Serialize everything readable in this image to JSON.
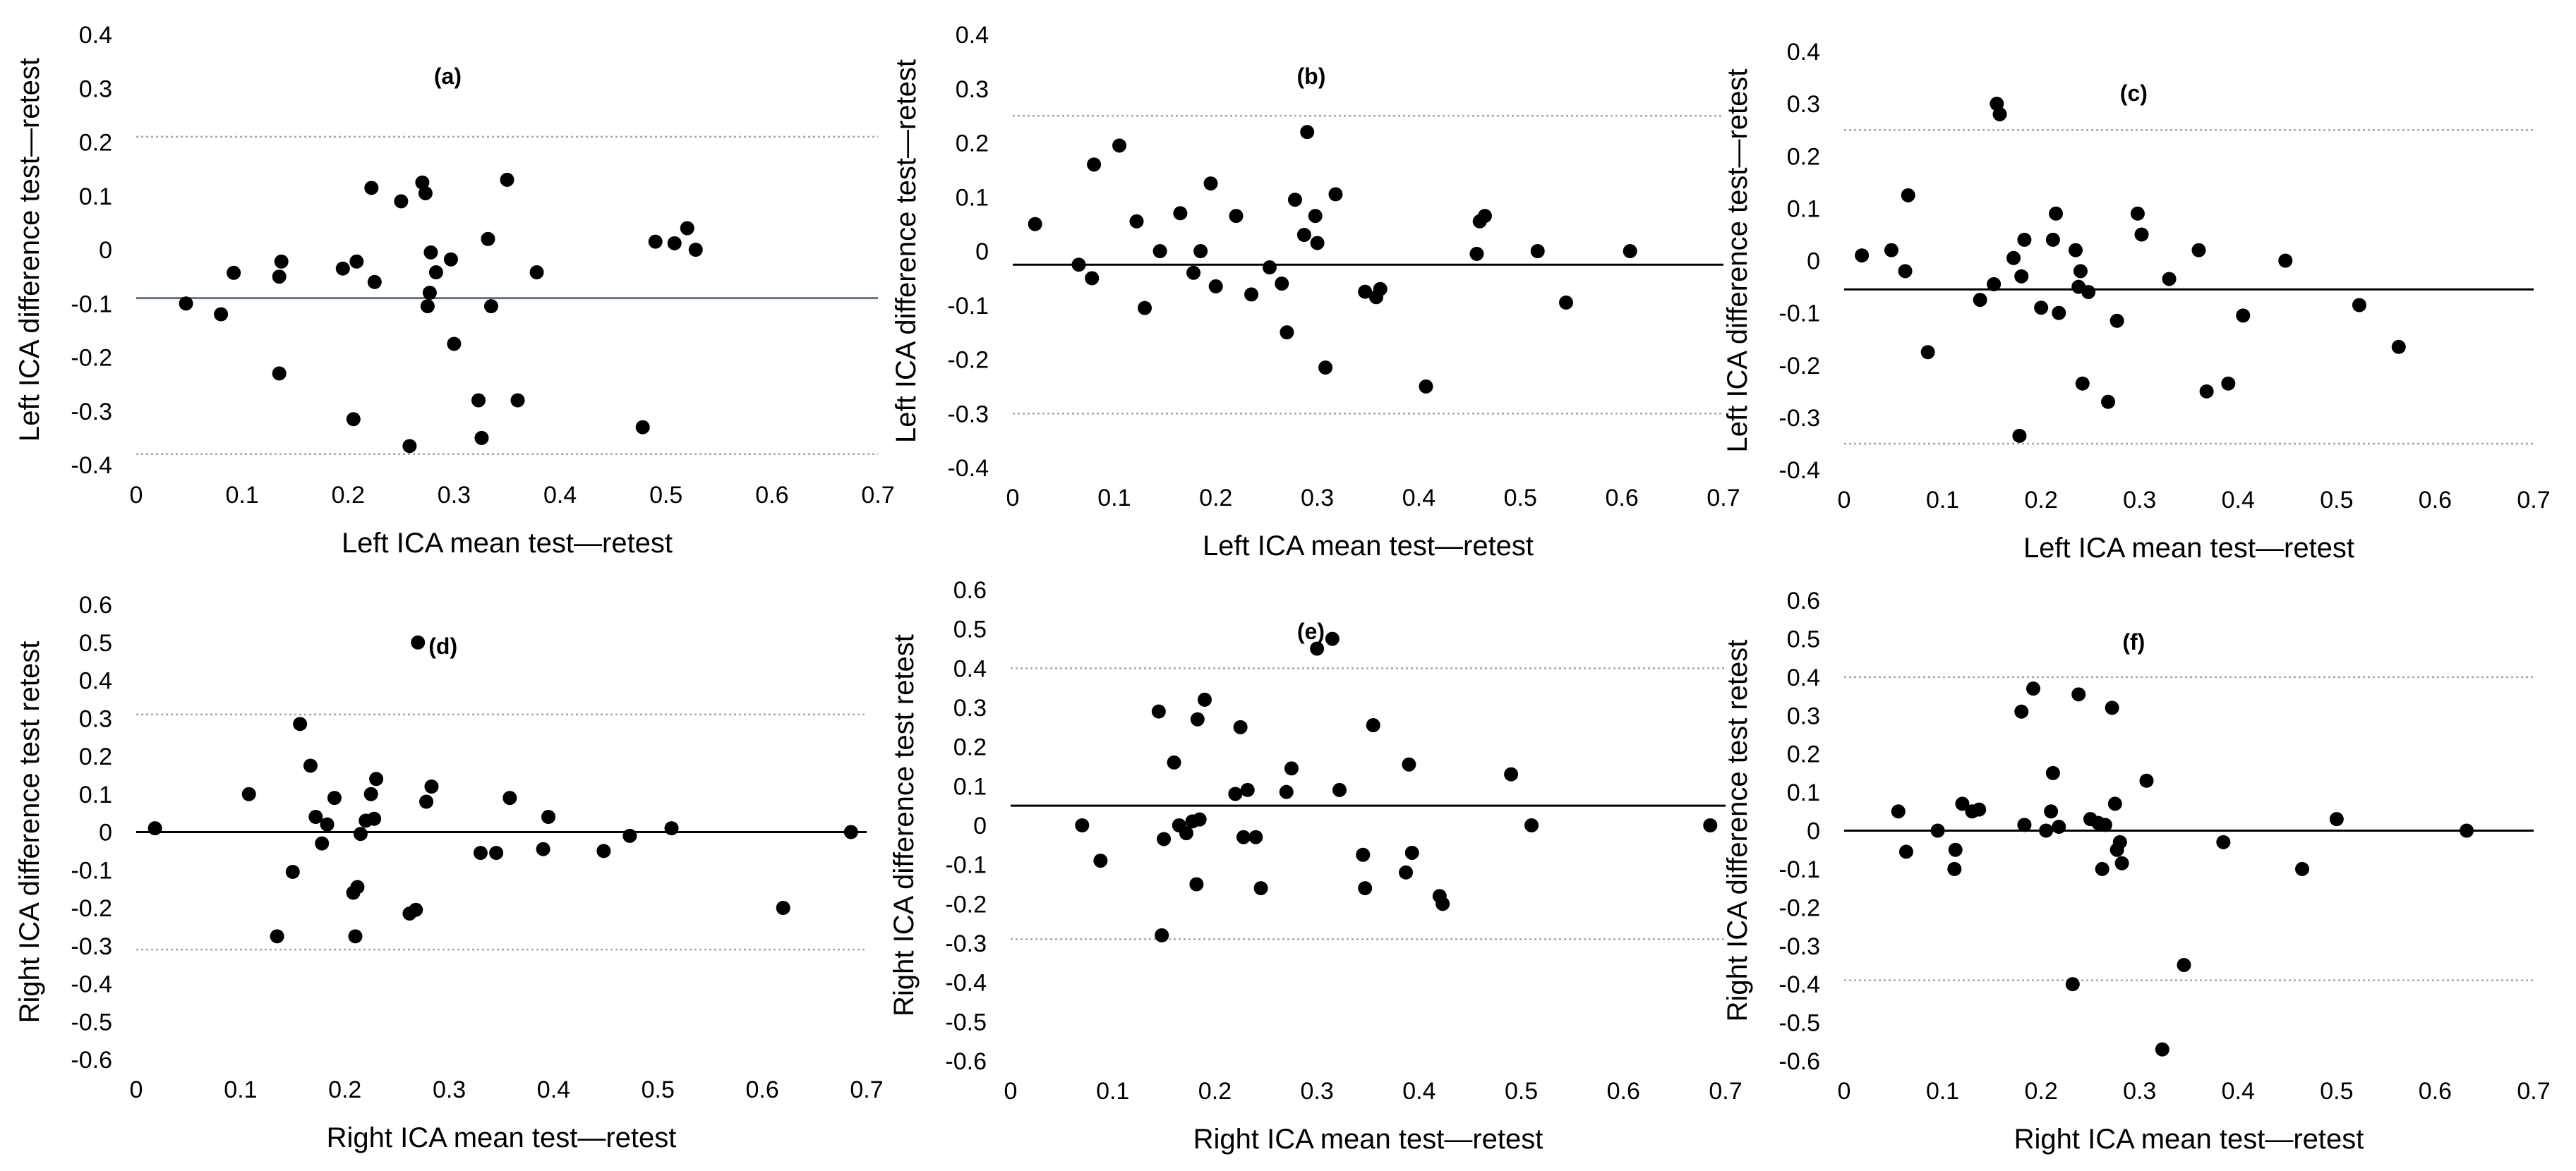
{
  "chart_data": [
    {
      "type": "scatter",
      "panel_label": "(a)",
      "xlabel": "Left ICA mean test—retest",
      "ylabel": "Left ICA difference test—retest",
      "xlim": [
        0,
        0.7
      ],
      "ylim": [
        -0.4,
        0.4
      ],
      "xticks": [
        0,
        0.1,
        0.2,
        0.3,
        0.4,
        0.5,
        0.6,
        0.7
      ],
      "yticks": [
        -0.4,
        -0.3,
        -0.2,
        -0.1,
        0,
        0.1,
        0.2,
        0.3,
        0.4
      ],
      "xtick_labels": [
        "0",
        "0.1",
        "0.2",
        "0.3",
        "0.4",
        "0.5",
        "0.6",
        "0.7"
      ],
      "ytick_labels": [
        "-0.4",
        "-0.3",
        "-0.2",
        "-0.1",
        "0",
        "0.1",
        "0.2",
        "0.3",
        "0.4"
      ],
      "mean_line": -0.09,
      "limit_lines": [
        0.21,
        -0.38
      ],
      "mean_line_color": "#5f7486",
      "points": [
        [
          0.047,
          -0.1
        ],
        [
          0.08,
          -0.12
        ],
        [
          0.092,
          -0.043
        ],
        [
          0.135,
          -0.23
        ],
        [
          0.135,
          -0.05
        ],
        [
          0.137,
          -0.022
        ],
        [
          0.195,
          -0.035
        ],
        [
          0.205,
          -0.315
        ],
        [
          0.208,
          -0.022
        ],
        [
          0.222,
          0.115
        ],
        [
          0.225,
          -0.06
        ],
        [
          0.25,
          0.09
        ],
        [
          0.258,
          -0.365
        ],
        [
          0.27,
          0.125
        ],
        [
          0.273,
          0.105
        ],
        [
          0.275,
          -0.105
        ],
        [
          0.277,
          -0.08
        ],
        [
          0.278,
          -0.005
        ],
        [
          0.283,
          -0.042
        ],
        [
          0.297,
          -0.018
        ],
        [
          0.3,
          -0.175
        ],
        [
          0.323,
          -0.28
        ],
        [
          0.326,
          -0.35
        ],
        [
          0.332,
          0.02
        ],
        [
          0.335,
          -0.105
        ],
        [
          0.35,
          0.13
        ],
        [
          0.36,
          -0.28
        ],
        [
          0.378,
          -0.042
        ],
        [
          0.478,
          -0.33
        ],
        [
          0.49,
          0.015
        ],
        [
          0.508,
          0.012
        ],
        [
          0.52,
          0.04
        ],
        [
          0.528,
          0.0
        ]
      ]
    },
    {
      "type": "scatter",
      "panel_label": "(b)",
      "xlabel": "Left ICA mean test—retest",
      "ylabel": "Left ICA difference test—retest",
      "xlim": [
        0,
        0.7
      ],
      "ylim": [
        -0.4,
        0.4
      ],
      "xticks": [
        0,
        0.1,
        0.2,
        0.3,
        0.4,
        0.5,
        0.6,
        0.7
      ],
      "yticks": [
        -0.4,
        -0.3,
        -0.2,
        -0.1,
        0,
        0.1,
        0.2,
        0.3,
        0.4
      ],
      "xtick_labels": [
        "0",
        "0.1",
        "0.2",
        "0.3",
        "0.4",
        "0.5",
        "0.6",
        "0.7"
      ],
      "ytick_labels": [
        "-0.4",
        "-0.3",
        "-0.2",
        "-0.1",
        "0",
        "0.1",
        "0.2",
        "0.3",
        "0.4"
      ],
      "mean_line": -0.025,
      "limit_lines": [
        0.25,
        -0.3
      ],
      "mean_line_color": "#000000",
      "points": [
        [
          0.022,
          0.05
        ],
        [
          0.065,
          -0.025
        ],
        [
          0.078,
          -0.05
        ],
        [
          0.08,
          0.16
        ],
        [
          0.105,
          0.195
        ],
        [
          0.122,
          0.055
        ],
        [
          0.13,
          -0.105
        ],
        [
          0.145,
          0.0
        ],
        [
          0.165,
          0.07
        ],
        [
          0.178,
          -0.04
        ],
        [
          0.185,
          0.0
        ],
        [
          0.195,
          0.125
        ],
        [
          0.2,
          -0.065
        ],
        [
          0.22,
          0.065
        ],
        [
          0.235,
          -0.08
        ],
        [
          0.253,
          -0.03
        ],
        [
          0.265,
          -0.06
        ],
        [
          0.27,
          -0.15
        ],
        [
          0.278,
          0.095
        ],
        [
          0.287,
          0.03
        ],
        [
          0.29,
          0.22
        ],
        [
          0.298,
          0.065
        ],
        [
          0.3,
          0.015
        ],
        [
          0.308,
          -0.215
        ],
        [
          0.318,
          0.105
        ],
        [
          0.347,
          -0.075
        ],
        [
          0.358,
          -0.085
        ],
        [
          0.362,
          -0.07
        ],
        [
          0.407,
          -0.25
        ],
        [
          0.457,
          -0.005
        ],
        [
          0.46,
          0.055
        ],
        [
          0.465,
          0.065
        ],
        [
          0.517,
          0.0
        ],
        [
          0.545,
          -0.095
        ],
        [
          0.608,
          0.0
        ]
      ]
    },
    {
      "type": "scatter",
      "panel_label": "(c)",
      "xlabel": "Left ICA mean test—retest",
      "ylabel": "Left ICA difference test—retest",
      "xlim": [
        0,
        0.7
      ],
      "ylim": [
        -0.4,
        0.4
      ],
      "xticks": [
        0,
        0.1,
        0.2,
        0.3,
        0.4,
        0.5,
        0.6,
        0.7
      ],
      "yticks": [
        -0.4,
        -0.3,
        -0.2,
        -0.1,
        0,
        0.1,
        0.2,
        0.3,
        0.4
      ],
      "xtick_labels": [
        "0",
        "0.1",
        "0.2",
        "0.3",
        "0.4",
        "0.5",
        "0.6",
        "0.7"
      ],
      "ytick_labels": [
        "-0.4",
        "-0.3",
        "-0.2",
        "-0.1",
        "0",
        "0.1",
        "0.2",
        "0.3",
        "0.4"
      ],
      "mean_line": -0.055,
      "limit_lines": [
        0.25,
        -0.35
      ],
      "mean_line_color": "#000000",
      "points": [
        [
          0.018,
          0.01
        ],
        [
          0.048,
          0.02
        ],
        [
          0.062,
          -0.02
        ],
        [
          0.065,
          0.125
        ],
        [
          0.085,
          -0.175
        ],
        [
          0.138,
          -0.075
        ],
        [
          0.152,
          -0.045
        ],
        [
          0.155,
          0.3
        ],
        [
          0.158,
          0.28
        ],
        [
          0.172,
          0.005
        ],
        [
          0.178,
          -0.335
        ],
        [
          0.18,
          -0.03
        ],
        [
          0.183,
          0.04
        ],
        [
          0.2,
          -0.09
        ],
        [
          0.212,
          0.04
        ],
        [
          0.215,
          0.09
        ],
        [
          0.218,
          -0.1
        ],
        [
          0.235,
          0.02
        ],
        [
          0.238,
          -0.05
        ],
        [
          0.24,
          -0.02
        ],
        [
          0.242,
          -0.235
        ],
        [
          0.248,
          -0.06
        ],
        [
          0.268,
          -0.27
        ],
        [
          0.277,
          -0.115
        ],
        [
          0.298,
          0.09
        ],
        [
          0.302,
          0.05
        ],
        [
          0.33,
          -0.035
        ],
        [
          0.36,
          0.02
        ],
        [
          0.368,
          -0.25
        ],
        [
          0.39,
          -0.235
        ],
        [
          0.405,
          -0.105
        ],
        [
          0.448,
          0.0
        ],
        [
          0.523,
          -0.085
        ],
        [
          0.563,
          -0.165
        ]
      ]
    },
    {
      "type": "scatter",
      "panel_label": "(d)",
      "xlabel": "Right ICA mean test—retest",
      "ylabel": "Right ICA difference test retest",
      "xlim": [
        0,
        0.7
      ],
      "ylim": [
        -0.6,
        0.6
      ],
      "xticks": [
        0,
        0.1,
        0.2,
        0.3,
        0.4,
        0.5,
        0.6,
        0.7
      ],
      "yticks": [
        -0.6,
        -0.5,
        -0.4,
        -0.3,
        -0.2,
        -0.1,
        0,
        0.1,
        0.2,
        0.3,
        0.4,
        0.5,
        0.6
      ],
      "xtick_labels": [
        "0",
        "0.1",
        "0.2",
        "0.3",
        "0.4",
        "0.5",
        "0.6",
        "0.7"
      ],
      "ytick_labels": [
        "-0.6",
        "-0.5",
        "-0.4",
        "-0.3",
        "-0.2",
        "-0.1",
        "0",
        "0.1",
        "0.2",
        "0.3",
        "0.4",
        "0.5",
        "0.6"
      ],
      "mean_line": 0.0,
      "limit_lines": [
        0.31,
        -0.31
      ],
      "mean_line_color": "#000000",
      "points": [
        [
          0.018,
          0.01
        ],
        [
          0.108,
          0.1
        ],
        [
          0.135,
          -0.275
        ],
        [
          0.15,
          -0.105
        ],
        [
          0.157,
          0.285
        ],
        [
          0.167,
          0.175
        ],
        [
          0.172,
          0.04
        ],
        [
          0.178,
          -0.03
        ],
        [
          0.183,
          0.02
        ],
        [
          0.19,
          0.09
        ],
        [
          0.208,
          -0.16
        ],
        [
          0.21,
          -0.275
        ],
        [
          0.212,
          -0.145
        ],
        [
          0.215,
          -0.005
        ],
        [
          0.22,
          0.03
        ],
        [
          0.225,
          0.1
        ],
        [
          0.228,
          0.035
        ],
        [
          0.23,
          0.14
        ],
        [
          0.262,
          -0.215
        ],
        [
          0.268,
          -0.205
        ],
        [
          0.27,
          0.5
        ],
        [
          0.278,
          0.08
        ],
        [
          0.283,
          0.12
        ],
        [
          0.33,
          -0.055
        ],
        [
          0.345,
          -0.055
        ],
        [
          0.358,
          0.09
        ],
        [
          0.39,
          -0.045
        ],
        [
          0.395,
          0.04
        ],
        [
          0.448,
          -0.05
        ],
        [
          0.473,
          -0.01
        ],
        [
          0.513,
          0.01
        ],
        [
          0.62,
          -0.2
        ],
        [
          0.685,
          0.0
        ]
      ]
    },
    {
      "type": "scatter",
      "panel_label": "(e)",
      "xlabel": "Right ICA mean test—retest",
      "ylabel": "Right ICA difference test retest",
      "xlim": [
        0,
        0.7
      ],
      "ylim": [
        -0.6,
        0.6
      ],
      "xticks": [
        0,
        0.1,
        0.2,
        0.3,
        0.4,
        0.5,
        0.6,
        0.7
      ],
      "yticks": [
        -0.6,
        -0.5,
        -0.4,
        -0.3,
        -0.2,
        -0.1,
        0,
        0.1,
        0.2,
        0.3,
        0.4,
        0.5,
        0.6
      ],
      "xtick_labels": [
        "0",
        "0.1",
        "0.2",
        "0.3",
        "0.4",
        "0.5",
        "0.6",
        "0.7"
      ],
      "ytick_labels": [
        "-0.6",
        "-0.5",
        "-0.4",
        "-0.3",
        "-0.2",
        "-0.1",
        "0",
        "0.1",
        "0.2",
        "0.3",
        "0.4",
        "0.5",
        "0.6"
      ],
      "mean_line": 0.05,
      "limit_lines": [
        0.4,
        -0.29
      ],
      "mean_line_color": "#000000",
      "points": [
        [
          0.07,
          0.0
        ],
        [
          0.088,
          -0.09
        ],
        [
          0.145,
          0.29
        ],
        [
          0.148,
          -0.28
        ],
        [
          0.15,
          -0.035
        ],
        [
          0.16,
          0.16
        ],
        [
          0.165,
          0.0
        ],
        [
          0.172,
          -0.02
        ],
        [
          0.178,
          0.01
        ],
        [
          0.182,
          -0.15
        ],
        [
          0.183,
          0.27
        ],
        [
          0.185,
          0.015
        ],
        [
          0.19,
          0.32
        ],
        [
          0.22,
          0.08
        ],
        [
          0.225,
          0.25
        ],
        [
          0.228,
          -0.03
        ],
        [
          0.232,
          0.09
        ],
        [
          0.24,
          -0.03
        ],
        [
          0.245,
          -0.16
        ],
        [
          0.27,
          0.085
        ],
        [
          0.275,
          0.145
        ],
        [
          0.3,
          0.45
        ],
        [
          0.315,
          0.475
        ],
        [
          0.322,
          0.09
        ],
        [
          0.345,
          -0.075
        ],
        [
          0.347,
          -0.16
        ],
        [
          0.355,
          0.255
        ],
        [
          0.387,
          -0.12
        ],
        [
          0.39,
          0.155
        ],
        [
          0.393,
          -0.07
        ],
        [
          0.42,
          -0.18
        ],
        [
          0.423,
          -0.2
        ],
        [
          0.49,
          0.13
        ],
        [
          0.51,
          0.0
        ],
        [
          0.685,
          0.0
        ]
      ]
    },
    {
      "type": "scatter",
      "panel_label": "(f)",
      "xlabel": "Right ICA mean test—retest",
      "ylabel": "Right ICA difference test retest",
      "xlim": [
        0,
        0.7
      ],
      "ylim": [
        -0.6,
        0.6
      ],
      "xticks": [
        0,
        0.1,
        0.2,
        0.3,
        0.4,
        0.5,
        0.6,
        0.7
      ],
      "yticks": [
        -0.6,
        -0.5,
        -0.4,
        -0.3,
        -0.2,
        -0.1,
        0,
        0.1,
        0.2,
        0.3,
        0.4,
        0.5,
        0.6
      ],
      "xtick_labels": [
        "0",
        "0.1",
        "0.2",
        "0.3",
        "0.4",
        "0.5",
        "0.6",
        "0.7"
      ],
      "ytick_labels": [
        "-0.6",
        "-0.5",
        "-0.4",
        "-0.3",
        "-0.2",
        "-0.1",
        "0",
        "0.1",
        "0.2",
        "0.3",
        "0.4",
        "0.5",
        "0.6"
      ],
      "mean_line": 0.0,
      "limit_lines": [
        0.4,
        -0.39
      ],
      "mean_line_color": "#000000",
      "points": [
        [
          0.055,
          0.05
        ],
        [
          0.063,
          -0.055
        ],
        [
          0.095,
          0.0
        ],
        [
          0.112,
          -0.1
        ],
        [
          0.113,
          -0.05
        ],
        [
          0.12,
          0.07
        ],
        [
          0.13,
          0.05
        ],
        [
          0.137,
          0.055
        ],
        [
          0.18,
          0.31
        ],
        [
          0.183,
          0.015
        ],
        [
          0.192,
          0.37
        ],
        [
          0.205,
          0.0
        ],
        [
          0.21,
          0.05
        ],
        [
          0.212,
          0.15
        ],
        [
          0.218,
          0.01
        ],
        [
          0.232,
          -0.4
        ],
        [
          0.238,
          0.355
        ],
        [
          0.25,
          0.03
        ],
        [
          0.258,
          0.02
        ],
        [
          0.262,
          -0.1
        ],
        [
          0.265,
          0.015
        ],
        [
          0.272,
          0.32
        ],
        [
          0.275,
          0.07
        ],
        [
          0.277,
          -0.05
        ],
        [
          0.28,
          -0.03
        ],
        [
          0.282,
          -0.085
        ],
        [
          0.307,
          0.13
        ],
        [
          0.323,
          -0.57
        ],
        [
          0.345,
          -0.35
        ],
        [
          0.385,
          -0.03
        ],
        [
          0.465,
          -0.1
        ],
        [
          0.5,
          0.03
        ],
        [
          0.632,
          0.0
        ]
      ]
    }
  ]
}
